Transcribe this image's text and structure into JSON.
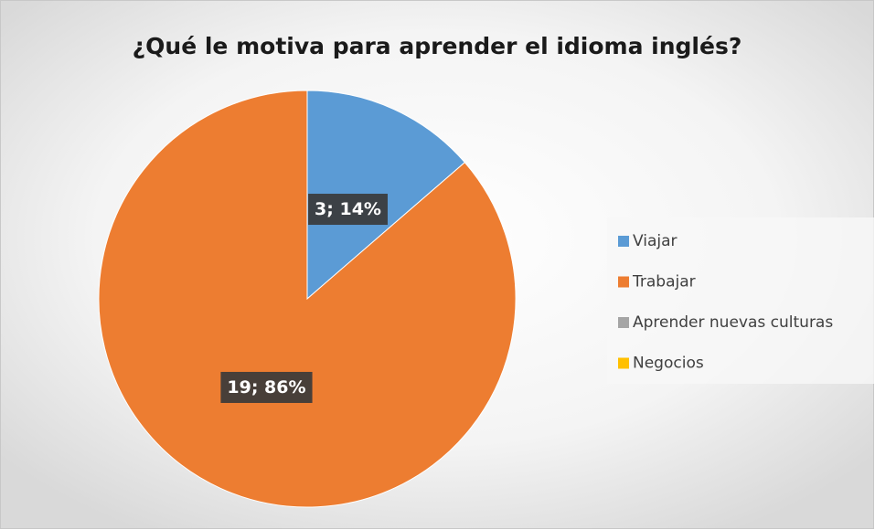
{
  "chart_data": {
    "type": "pie",
    "title": "¿Qué le motiva para aprender el idioma inglés?",
    "categories": [
      "Viajar",
      "Trabajar",
      "Aprender nuevas culturas",
      "Negocios"
    ],
    "values": [
      3,
      19,
      0,
      0
    ],
    "value_labels": [
      "3; 14%",
      "19; 86%",
      null,
      null
    ],
    "colors": [
      "#5b9bd5",
      "#ed7d31",
      "#a5a5a5",
      "#ffc000"
    ],
    "legend": "right"
  }
}
